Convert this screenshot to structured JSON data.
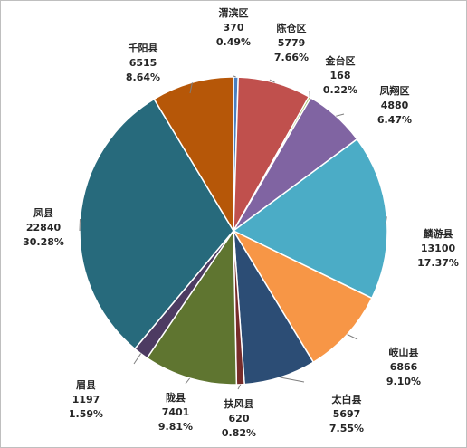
{
  "chart_data": {
    "type": "pie",
    "slices": [
      {
        "name": "渭滨区",
        "value": 370,
        "percent": "0.49%",
        "color": "#4a7fc1"
      },
      {
        "name": "陈仓区",
        "value": 5779,
        "percent": "7.66%",
        "color": "#c0504d"
      },
      {
        "name": "金台区",
        "value": 168,
        "percent": "0.22%",
        "color": "#9bbb59"
      },
      {
        "name": "凤翔区",
        "value": 4880,
        "percent": "6.47%",
        "color": "#8064a2"
      },
      {
        "name": "麟游县",
        "value": 13100,
        "percent": "17.37%",
        "color": "#4bacc6"
      },
      {
        "name": "岐山县",
        "value": 6866,
        "percent": "9.10%",
        "color": "#f79646"
      },
      {
        "name": "太白县",
        "value": 5697,
        "percent": "7.55%",
        "color": "#2c4d75"
      },
      {
        "name": "扶风县",
        "value": 620,
        "percent": "0.82%",
        "color": "#772c2a"
      },
      {
        "name": "陇县",
        "value": 7401,
        "percent": "9.81%",
        "color": "#5f7530"
      },
      {
        "name": "眉县",
        "value": 1197,
        "percent": "1.59%",
        "color": "#4d3b62"
      },
      {
        "name": "凤县",
        "value": 22840,
        "percent": "30.28%",
        "color": "#276a7c"
      },
      {
        "name": "千阳县",
        "value": 6515,
        "percent": "8.64%",
        "color": "#b65708"
      }
    ]
  }
}
